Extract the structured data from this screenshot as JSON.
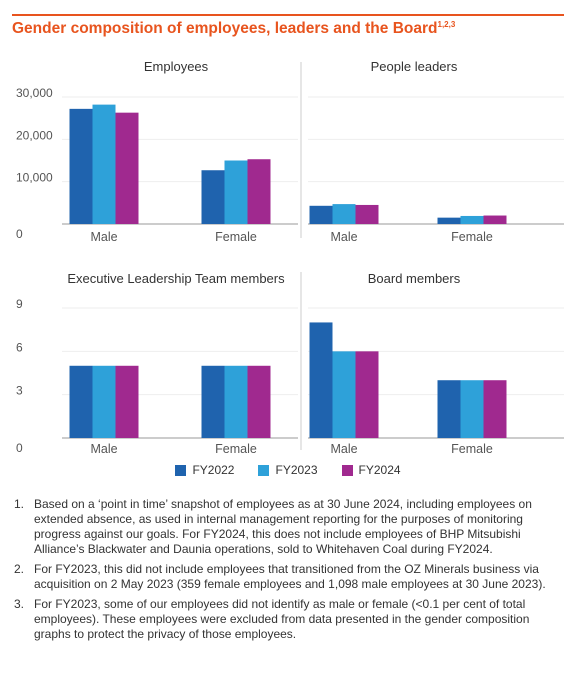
{
  "header": {
    "title": "Gender composition of employees, leaders and the Board",
    "title_sup": "1,2,3"
  },
  "colors": {
    "accent": "#e8541e",
    "FY2022": "#1f63ae",
    "FY2023": "#2ea1d9",
    "FY2024": "#a0298f",
    "axis": "#999999",
    "divider": "#cccccc"
  },
  "legend": [
    {
      "label": "FY2022",
      "color": "#1f63ae"
    },
    {
      "label": "FY2023",
      "color": "#2ea1d9"
    },
    {
      "label": "FY2024",
      "color": "#a0298f"
    }
  ],
  "chart_data": [
    {
      "type": "bar",
      "title": "Employees",
      "categories": [
        "Male",
        "Female"
      ],
      "series": [
        {
          "name": "FY2022",
          "values": [
            27200,
            12700
          ]
        },
        {
          "name": "FY2023",
          "values": [
            28200,
            15000
          ]
        },
        {
          "name": "FY2024",
          "values": [
            26300,
            15300
          ]
        }
      ],
      "ylim": [
        0,
        30000
      ],
      "yticks": [
        "0",
        "10,000",
        "20,000",
        "30,000"
      ],
      "ytick_values": [
        0,
        10000,
        20000,
        30000
      ]
    },
    {
      "type": "bar",
      "title": "People leaders",
      "categories": [
        "Male",
        "Female"
      ],
      "series": [
        {
          "name": "FY2022",
          "values": [
            4300,
            1500
          ]
        },
        {
          "name": "FY2023",
          "values": [
            4700,
            1900
          ]
        },
        {
          "name": "FY2024",
          "values": [
            4500,
            2000
          ]
        }
      ],
      "ylim": [
        0,
        30000
      ]
    },
    {
      "type": "bar",
      "title": "Executive Leadership Team members",
      "categories": [
        "Male",
        "Female"
      ],
      "series": [
        {
          "name": "FY2022",
          "values": [
            5,
            5
          ]
        },
        {
          "name": "FY2023",
          "values": [
            5,
            5
          ]
        },
        {
          "name": "FY2024",
          "values": [
            5,
            5
          ]
        }
      ],
      "ylim": [
        0,
        9
      ],
      "yticks": [
        "0",
        "3",
        "6",
        "9"
      ],
      "ytick_values": [
        0,
        3,
        6,
        9
      ]
    },
    {
      "type": "bar",
      "title": "Board members",
      "categories": [
        "Male",
        "Female"
      ],
      "series": [
        {
          "name": "FY2022",
          "values": [
            8,
            4
          ]
        },
        {
          "name": "FY2023",
          "values": [
            6,
            4
          ]
        },
        {
          "name": "FY2024",
          "values": [
            6,
            4
          ]
        }
      ],
      "ylim": [
        0,
        9
      ]
    }
  ],
  "notes": [
    {
      "num": "1.",
      "text": "Based on a ‘point in time’ snapshot of employees as at 30 June 2024, including employees on extended absence, as used in internal management reporting for the purposes of monitoring progress against our goals. For FY2024, this does not include employees of BHP Mitsubishi Alliance’s Blackwater and Daunia operations, sold to Whitehaven Coal during FY2024."
    },
    {
      "num": "2.",
      "text": "For FY2023, this did not include employees that transitioned from the OZ Minerals business via acquisition on 2 May 2023 (359 female employees and 1,098 male employees at 30 June 2023)."
    },
    {
      "num": "3.",
      "text": "For FY2023, some of our employees did not identify as male or female (<0.1 per cent of total employees). These employees were excluded from data presented in the gender composition graphs to protect the privacy of those employees."
    }
  ]
}
